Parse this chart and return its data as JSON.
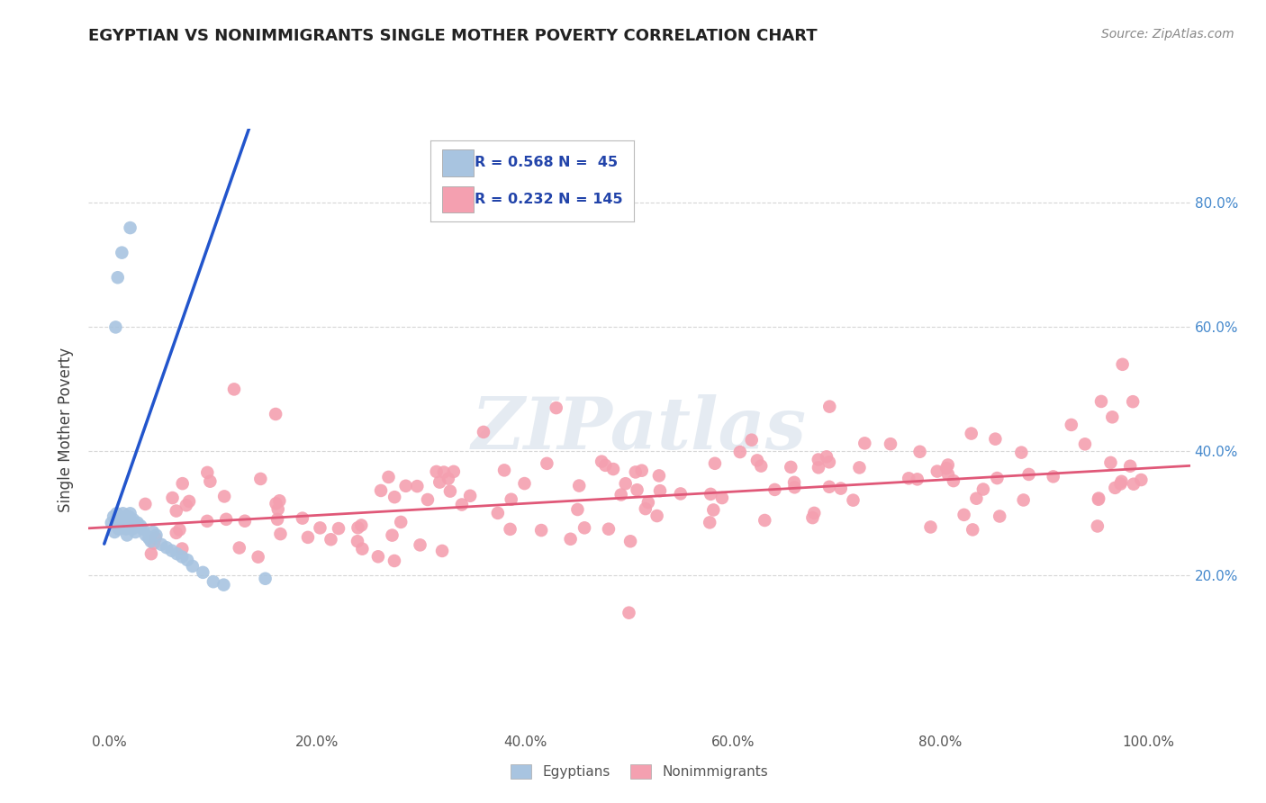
{
  "title": "EGYPTIAN VS NONIMMIGRANTS SINGLE MOTHER POVERTY CORRELATION CHART",
  "source": "Source: ZipAtlas.com",
  "ylabel": "Single Mother Poverty",
  "x_ticks": [
    0.0,
    0.2,
    0.4,
    0.6,
    0.8,
    1.0
  ],
  "x_tick_labels": [
    "0.0%",
    "20.0%",
    "40.0%",
    "60.0%",
    "80.0%",
    "100.0%"
  ],
  "y_ticks": [
    0.2,
    0.4,
    0.6,
    0.8
  ],
  "y_tick_labels": [
    "20.0%",
    "40.0%",
    "60.0%",
    "80.0%"
  ],
  "legend_r1": "R = 0.568",
  "legend_n1": "N =  45",
  "legend_r2": "R = 0.232",
  "legend_n2": "N = 145",
  "egyptian_color": "#a8c4e0",
  "nonimmigrant_color": "#f4a0b0",
  "trendline_blue": "#2255cc",
  "trendline_pink": "#e05878",
  "grid_color": "#cccccc",
  "background_color": "#ffffff",
  "title_fontsize": 13,
  "source_fontsize": 10,
  "tick_fontsize": 11,
  "legend_fontsize": 13,
  "watermark_text": "ZIPatlas",
  "xlim": [
    -0.02,
    1.04
  ],
  "ylim": [
    -0.05,
    0.92
  ]
}
